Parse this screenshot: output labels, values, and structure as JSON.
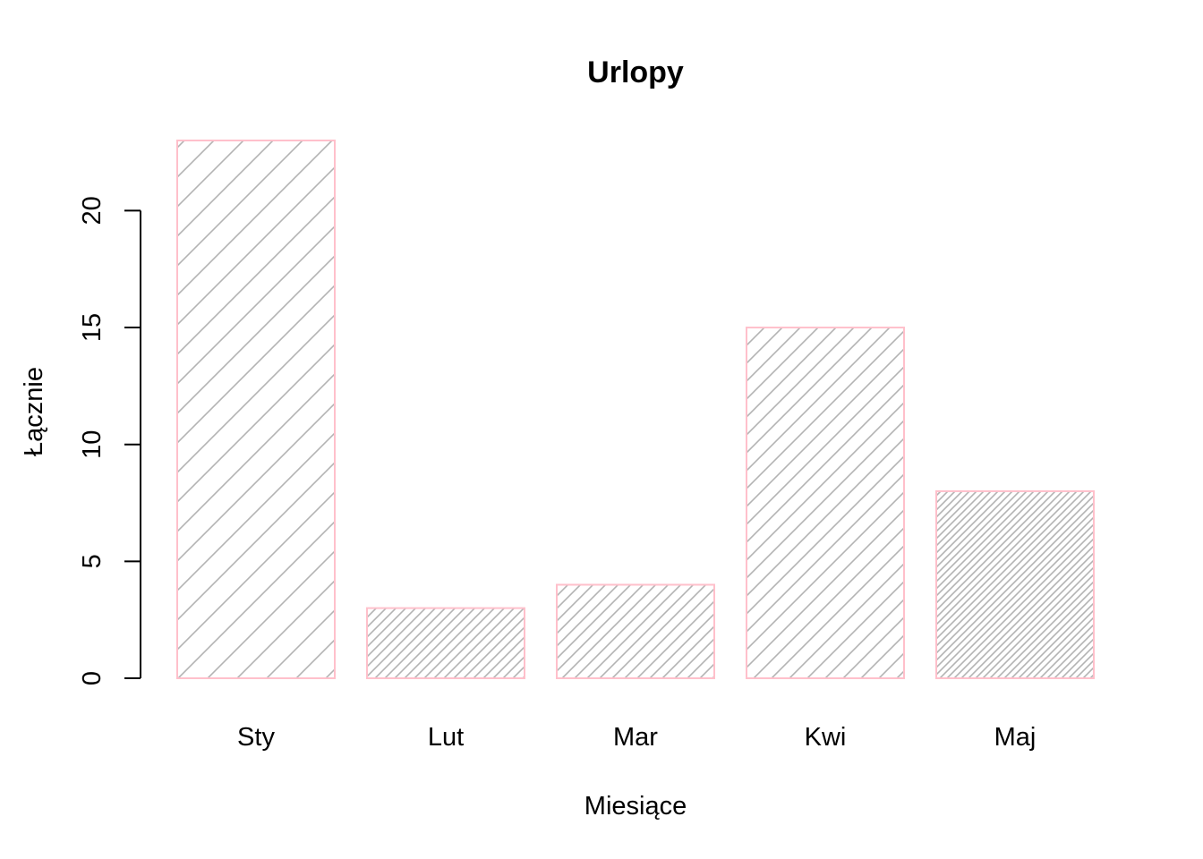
{
  "chart_data": {
    "type": "bar",
    "title": "Urlopy",
    "xlabel": "Miesiące",
    "ylabel": "Łącznie",
    "categories": [
      "Sty",
      "Lut",
      "Mar",
      "Kwi",
      "Maj"
    ],
    "values": [
      23,
      3,
      4,
      15,
      8
    ],
    "yticks": [
      "0",
      "5",
      "10",
      "15",
      "20"
    ],
    "ylim": [
      0,
      23
    ],
    "grid": false,
    "legend": "none",
    "bar_border_color": "#ffc0cb",
    "hatch_color": "#b3b3b3",
    "hatch_density": [
      6,
      18,
      14,
      10,
      24
    ]
  }
}
